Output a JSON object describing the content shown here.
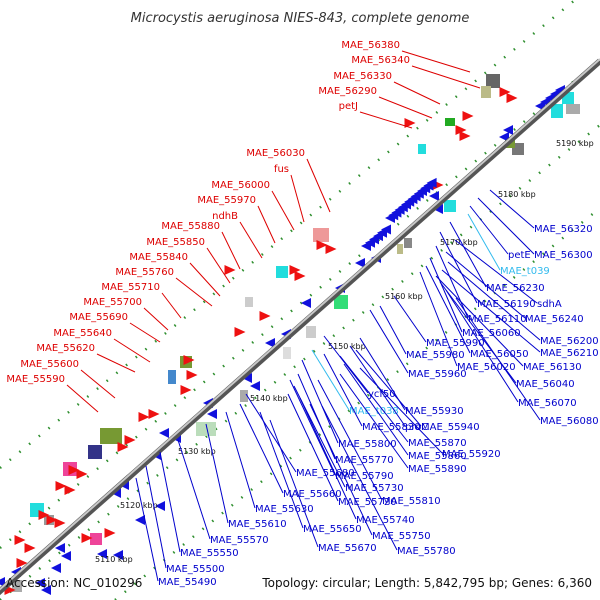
{
  "title": "Microcystis aeruginosa NIES-843, complete genome",
  "accession": "Accession: NC_010296",
  "summary": "Topology: circular; Length: 5,842,795 bp; Genes: 6,360",
  "colors": {
    "forward_label": "#dd0000",
    "reverse_label": "#0000cc",
    "rna_label": "#33bbee",
    "forward_gene": "#ee1111",
    "reverse_gene": "#1111dd",
    "backbone": "#808080",
    "dots": "#2f8f2f"
  },
  "ticks": [
    "5110 kbp",
    "5120 kbp",
    "5130 kbp",
    "5140 kbp",
    "5150 kbp",
    "5160 kbp",
    "5170 kbp",
    "5180 kbp",
    "5190 kbp"
  ],
  "top_labels": [
    "MAE_56380",
    "MAE_56340",
    "MAE_56330",
    "MAE_56290",
    "petJ",
    "MAE_56030",
    "fus",
    "MAE_56000",
    "MAE_55970",
    "ndhB",
    "MAE_55880",
    "MAE_55850",
    "MAE_55840",
    "MAE_55760",
    "MAE_55710",
    "MAE_55700",
    "MAE_55690",
    "MAE_55640",
    "MAE_55620",
    "MAE_55600",
    "MAE_55590"
  ],
  "bottom_labels": [
    "MAE_56320",
    "MAE_56300",
    "petE",
    "MAE_t039",
    "MAE_56230",
    "MAE_56190",
    "sdhA",
    "MAE_56110",
    "MAE_56240",
    "MAE_56060",
    "MAE_56200",
    "MAE_56050",
    "MAE_56210",
    "MAE_56020",
    "MAE_56130",
    "MAE_56040",
    "MAE_56070",
    "MAE_56080",
    "MAE_55990",
    "MAE_55980",
    "MAE_55960",
    "ycf50",
    "MAE_t038",
    "MAE_55930",
    "MAE_55830",
    "proC",
    "MAE_55940",
    "MAE_55870",
    "MAE_55800",
    "MAE_55860",
    "MAE_55920",
    "MAE_55770",
    "MAE_55890",
    "MAE_55790",
    "MAE_55680",
    "MAE_55730",
    "MAE_55660",
    "MAE_55720",
    "MAE_55810",
    "MAE_55630",
    "MAE_55740",
    "MAE_55610",
    "MAE_55650",
    "MAE_55570",
    "MAE_55750",
    "MAE_55670",
    "MAE_55780",
    "MAE_55550",
    "MAE_55500",
    "MAE_55490"
  ]
}
